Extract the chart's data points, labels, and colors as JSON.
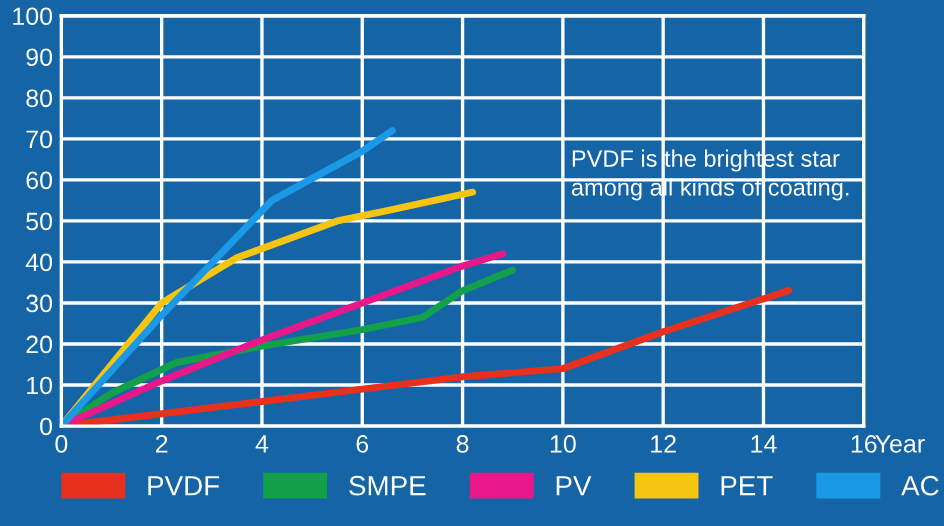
{
  "chart_data": {
    "type": "line",
    "xlabel": "Year",
    "xlim": [
      0,
      16
    ],
    "ylim": [
      0,
      100
    ],
    "xticks": [
      0,
      2,
      4,
      6,
      8,
      10,
      12,
      14,
      16
    ],
    "yticks": [
      0,
      10,
      20,
      30,
      40,
      50,
      60,
      70,
      80,
      90,
      100
    ],
    "grid": true,
    "legend": "bottom",
    "marker": "none",
    "line_style": "solid",
    "annotations": [
      "PVDF is the brightest star\namong all kinds of coating."
    ],
    "series": [
      {
        "name": "PVDF",
        "color": "#e8301e",
        "x": [
          0,
          2,
          4,
          6,
          8,
          10,
          12,
          14.5
        ],
        "values": [
          0,
          3,
          6,
          9,
          12,
          14,
          23,
          33
        ]
      },
      {
        "name": "SMPE",
        "color": "#12a04a",
        "x": [
          0,
          1,
          2.3,
          4,
          6,
          7.2,
          8,
          9
        ],
        "values": [
          0,
          8,
          15.5,
          19.5,
          23.5,
          26.5,
          33,
          38
        ]
      },
      {
        "name": "PV",
        "color": "#e8178a",
        "x": [
          0,
          2,
          4,
          6,
          8,
          8.8
        ],
        "values": [
          0,
          11,
          21,
          30,
          39,
          42
        ]
      },
      {
        "name": "PET",
        "color": "#f6c512",
        "x": [
          0,
          2,
          3.5,
          5.5,
          6.5,
          8.2
        ],
        "values": [
          0,
          30,
          41,
          50,
          52.5,
          57
        ]
      },
      {
        "name": "AC",
        "color": "#1a9ae6",
        "x": [
          0,
          2,
          4.2,
          6,
          6.6
        ],
        "values": [
          0,
          27,
          55,
          67,
          72
        ]
      }
    ]
  }
}
